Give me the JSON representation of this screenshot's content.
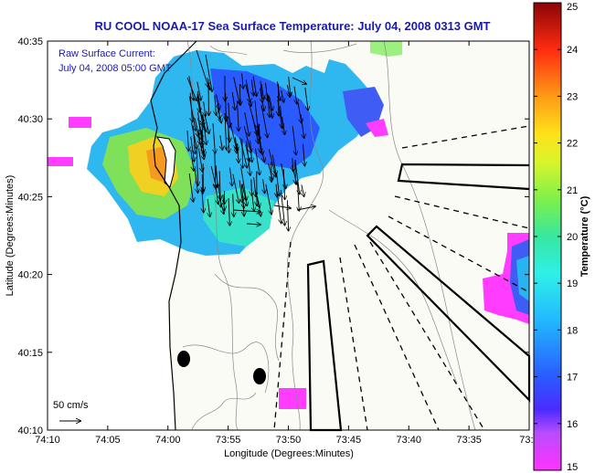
{
  "title": "RU COOL  NOAA-17  Sea Surface Temperature:  July 04, 2008 0313 GMT",
  "inset": {
    "line1": "Raw Surface Current:",
    "line2": "July 04, 2008 05:00 GMT"
  },
  "scale_label": "50 cm/s",
  "axes": {
    "xlabel": "Longitude (Degrees:Minutes)",
    "ylabel": "Latitude (Degrees:Minutes)",
    "xticks": [
      "74:10",
      "74:05",
      "74:00",
      "73:55",
      "73:50",
      "73:45",
      "73:40",
      "73:35",
      "73:3"
    ],
    "yticks": [
      "40:35",
      "40:30",
      "40:25",
      "40:20",
      "40:15",
      "40:10"
    ]
  },
  "colorbar": {
    "label": "Temperature (°C)",
    "min": 15,
    "max": 25,
    "ticks": [
      "25",
      "24",
      "23",
      "22",
      "21",
      "20",
      "19",
      "18",
      "17",
      "16",
      "15"
    ]
  },
  "colors": {
    "title": "#1a1aa8",
    "land": "#ffffff",
    "water_nodata": "#fbfbf5"
  }
}
